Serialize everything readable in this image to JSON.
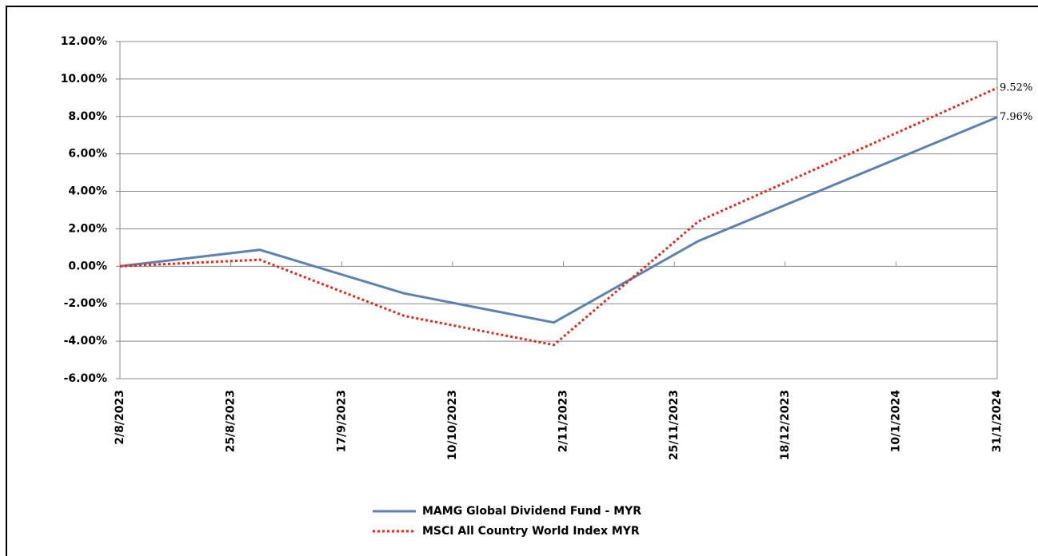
{
  "chart_data": {
    "type": "line",
    "x": [
      "2023-08-02",
      "2023-08-31",
      "2023-09-30",
      "2023-10-31",
      "2023-11-30",
      "2023-12-31",
      "2024-01-31"
    ],
    "series": [
      {
        "name": "MAMG Global Dividend Fund - MYR",
        "color": "#5b82b3",
        "dash": "solid",
        "values": [
          0,
          0.88,
          -1.45,
          -3.0,
          1.35,
          4.65,
          7.96
        ],
        "value_labels": [
          null,
          null,
          null,
          null,
          null,
          null,
          "7.96%"
        ]
      },
      {
        "name": "MSCI All Country World Index MYR",
        "color": "#e02a1f",
        "dash": "dotted",
        "values": [
          0,
          0.35,
          -2.65,
          -4.2,
          2.4,
          5.96,
          9.52
        ],
        "value_labels": [
          null,
          null,
          null,
          null,
          null,
          null,
          "9.52%"
        ]
      }
    ],
    "xlim": [
      "2023-08-02",
      "2024-01-31"
    ],
    "xticks": [
      {
        "value": "2023-08-02",
        "label": "2/8/2023"
      },
      {
        "value": "2023-08-25",
        "label": "25/8/2023"
      },
      {
        "value": "2023-09-17",
        "label": "17/9/2023"
      },
      {
        "value": "2023-10-10",
        "label": "10/10/2023"
      },
      {
        "value": "2023-11-02",
        "label": "2/11/2023"
      },
      {
        "value": "2023-11-25",
        "label": "25/11/2023"
      },
      {
        "value": "2023-12-18",
        "label": "18/12/2023"
      },
      {
        "value": "2024-01-10",
        "label": "10/1/2024"
      },
      {
        "value": "2024-01-31",
        "label": "31/1/2024"
      }
    ],
    "ylim": [
      -6,
      12
    ],
    "yticks": [
      {
        "value": -6,
        "label": "-6.00%"
      },
      {
        "value": -4,
        "label": "-4.00%"
      },
      {
        "value": -2,
        "label": "-2.00%"
      },
      {
        "value": 0,
        "label": "0.00%"
      },
      {
        "value": 2,
        "label": "2.00%"
      },
      {
        "value": 4,
        "label": "4.00%"
      },
      {
        "value": 6,
        "label": "6.00%"
      },
      {
        "value": 8,
        "label": "8.00%"
      },
      {
        "value": 10,
        "label": "10.00%"
      },
      {
        "value": 12,
        "label": "12.00%"
      }
    ],
    "grid": true,
    "legend": "bottom"
  }
}
